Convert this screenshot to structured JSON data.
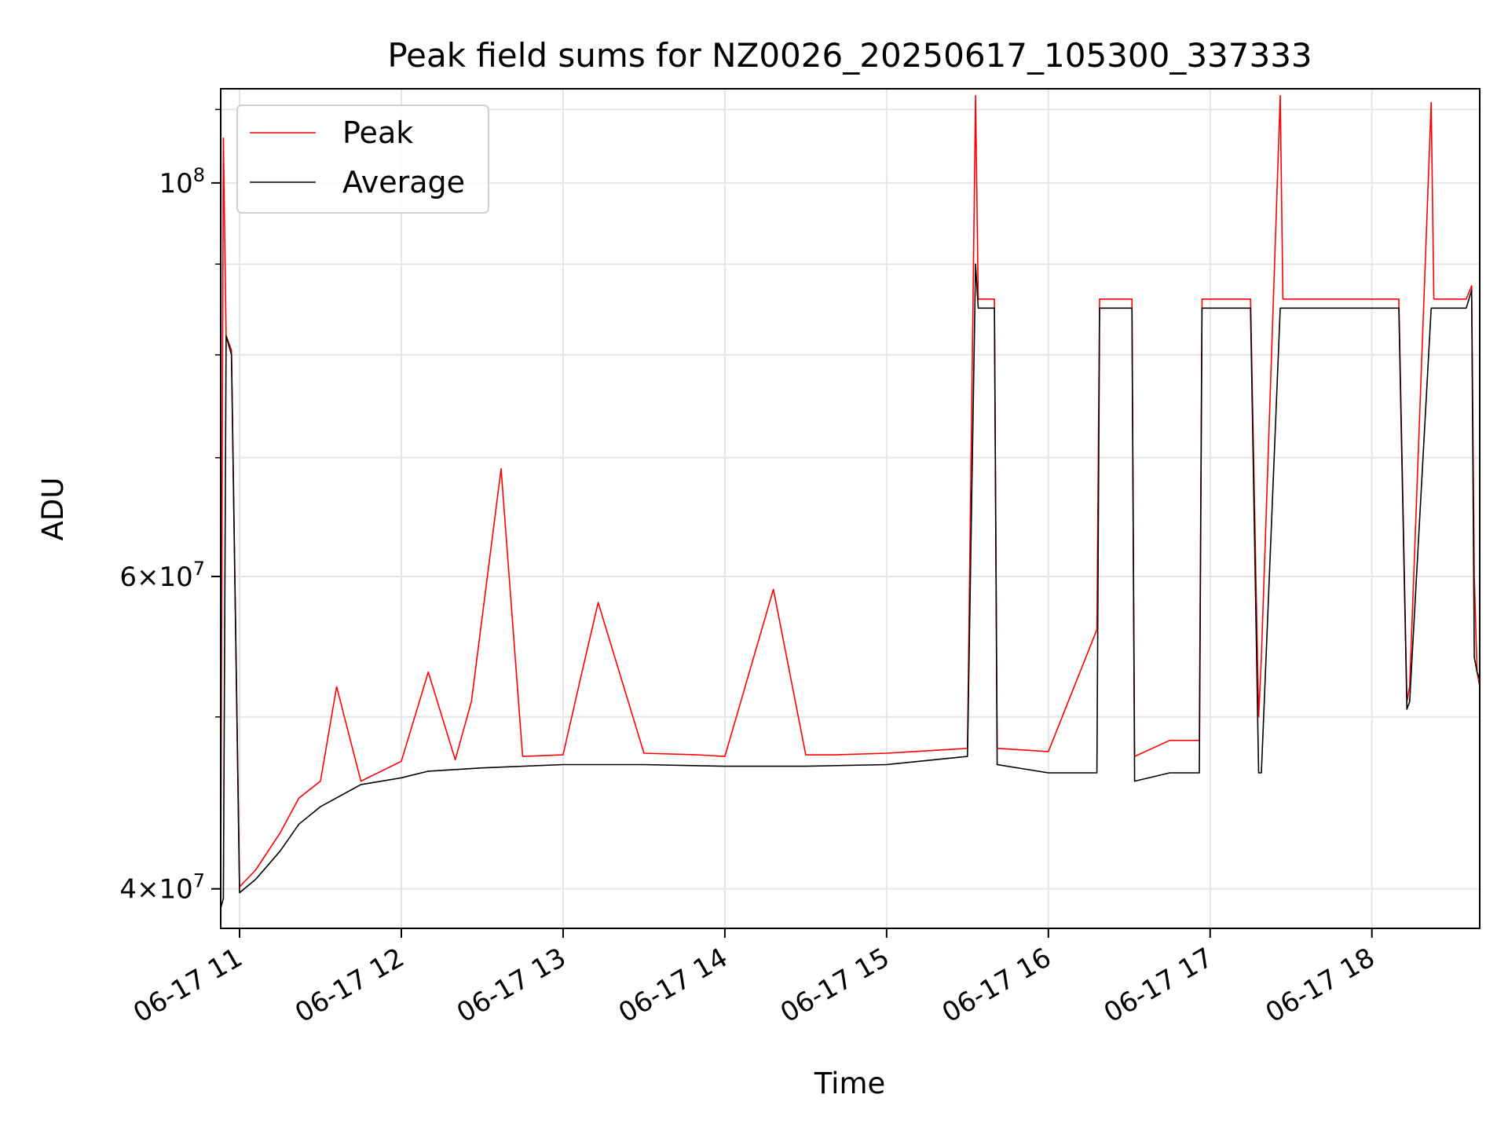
{
  "chart_data": {
    "type": "line",
    "title": "Peak field sums for NZ0026_20250617_105300_337333",
    "xlabel": "Time",
    "ylabel": "ADU",
    "y_scale": "log",
    "ylim": [
      38000000,
      113000000
    ],
    "xlim": [
      "2025-06-17 10:53",
      "2025-06-17 18:40"
    ],
    "grid": true,
    "legend_position": "upper-left",
    "x_ticks": [
      {
        "value": "2025-06-17 11:00",
        "label": "06-17 11"
      },
      {
        "value": "2025-06-17 12:00",
        "label": "06-17 12"
      },
      {
        "value": "2025-06-17 13:00",
        "label": "06-17 13"
      },
      {
        "value": "2025-06-17 14:00",
        "label": "06-17 14"
      },
      {
        "value": "2025-06-17 15:00",
        "label": "06-17 15"
      },
      {
        "value": "2025-06-17 16:00",
        "label": "06-17 16"
      },
      {
        "value": "2025-06-17 17:00",
        "label": "06-17 17"
      },
      {
        "value": "2025-06-17 18:00",
        "label": "06-17 18"
      }
    ],
    "y_ticks": [
      {
        "value": 40000000,
        "base": "4×10",
        "exp": "7"
      },
      {
        "value": 60000000,
        "base": "6×10",
        "exp": "7"
      },
      {
        "value": 100000000,
        "base": "10",
        "exp": "8"
      }
    ],
    "series": [
      {
        "name": "Peak",
        "color": "#ff0000",
        "x": [
          "2025-06-17 10:53",
          "2025-06-17 10:54",
          "2025-06-17 10:55",
          "2025-06-17 10:57",
          "2025-06-17 11:00",
          "2025-06-17 11:06",
          "2025-06-17 11:15",
          "2025-06-17 11:22",
          "2025-06-17 11:30",
          "2025-06-17 11:36",
          "2025-06-17 11:45",
          "2025-06-17 12:00",
          "2025-06-17 12:10",
          "2025-06-17 12:20",
          "2025-06-17 12:26",
          "2025-06-17 12:37",
          "2025-06-17 12:45",
          "2025-06-17 13:00",
          "2025-06-17 13:07",
          "2025-06-17 13:13",
          "2025-06-17 13:30",
          "2025-06-17 13:50",
          "2025-06-17 14:00",
          "2025-06-17 14:18",
          "2025-06-17 14:30",
          "2025-06-17 14:41",
          "2025-06-17 15:00",
          "2025-06-17 15:30",
          "2025-06-17 15:33",
          "2025-06-17 15:34",
          "2025-06-17 15:40",
          "2025-06-17 15:41",
          "2025-06-17 16:00",
          "2025-06-17 16:18",
          "2025-06-17 16:19",
          "2025-06-17 16:31",
          "2025-06-17 16:32",
          "2025-06-17 16:45",
          "2025-06-17 16:56",
          "2025-06-17 16:57",
          "2025-06-17 17:15",
          "2025-06-17 17:18",
          "2025-06-17 17:19",
          "2025-06-17 17:26",
          "2025-06-17 17:27",
          "2025-06-17 17:50",
          "2025-06-17 17:57",
          "2025-06-17 18:10",
          "2025-06-17 18:13",
          "2025-06-17 18:14",
          "2025-06-17 18:22",
          "2025-06-17 18:23",
          "2025-06-17 18:35",
          "2025-06-17 18:37",
          "2025-06-17 18:38",
          "2025-06-17 18:39",
          "2025-06-17 18:40"
        ],
        "y": [
          40000000,
          106000000,
          82000000,
          80500000,
          40100000,
          41000000,
          43000000,
          45000000,
          46000000,
          52000000,
          46000000,
          47200000,
          53000000,
          47300000,
          51000000,
          69000000,
          47500000,
          47600000,
          53000000,
          58000000,
          47700000,
          47600000,
          47500000,
          59000000,
          47600000,
          47600000,
          47700000,
          48000000,
          112000000,
          86000000,
          86000000,
          48000000,
          47800000,
          56000000,
          86000000,
          86000000,
          47500000,
          48500000,
          48500000,
          86000000,
          86000000,
          50000000,
          54000000,
          112000000,
          86000000,
          86000000,
          86000000,
          86000000,
          51000000,
          52000000,
          111000000,
          86000000,
          86000000,
          87500000,
          60000000,
          53000000,
          52000000
        ]
      },
      {
        "name": "Average",
        "color": "#000000",
        "x": [
          "2025-06-17 10:53",
          "2025-06-17 10:54",
          "2025-06-17 10:55",
          "2025-06-17 10:57",
          "2025-06-17 11:00",
          "2025-06-17 11:06",
          "2025-06-17 11:15",
          "2025-06-17 11:22",
          "2025-06-17 11:30",
          "2025-06-17 11:45",
          "2025-06-17 12:00",
          "2025-06-17 12:10",
          "2025-06-17 12:30",
          "2025-06-17 13:00",
          "2025-06-17 13:30",
          "2025-06-17 14:00",
          "2025-06-17 14:30",
          "2025-06-17 15:00",
          "2025-06-17 15:30",
          "2025-06-17 15:33",
          "2025-06-17 15:34",
          "2025-06-17 15:40",
          "2025-06-17 15:41",
          "2025-06-17 16:00",
          "2025-06-17 16:18",
          "2025-06-17 16:19",
          "2025-06-17 16:31",
          "2025-06-17 16:32",
          "2025-06-17 16:45",
          "2025-06-17 16:56",
          "2025-06-17 16:57",
          "2025-06-17 17:15",
          "2025-06-17 17:18",
          "2025-06-17 17:19",
          "2025-06-17 17:26",
          "2025-06-17 17:27",
          "2025-06-17 17:57",
          "2025-06-17 18:10",
          "2025-06-17 18:13",
          "2025-06-17 18:14",
          "2025-06-17 18:22",
          "2025-06-17 18:23",
          "2025-06-17 18:35",
          "2025-06-17 18:37",
          "2025-06-17 18:38",
          "2025-06-17 18:39",
          "2025-06-17 18:40"
        ],
        "y": [
          39000000,
          39500000,
          82000000,
          80000000,
          39800000,
          40500000,
          42000000,
          43500000,
          44500000,
          45800000,
          46200000,
          46600000,
          46800000,
          47000000,
          47000000,
          46900000,
          46900000,
          47000000,
          47500000,
          90000000,
          85000000,
          85000000,
          47000000,
          46500000,
          46500000,
          85000000,
          85000000,
          46000000,
          46500000,
          46500000,
          85000000,
          85000000,
          46500000,
          46500000,
          85000000,
          85000000,
          85000000,
          85000000,
          50500000,
          51000000,
          85000000,
          85000000,
          85000000,
          87000000,
          54000000,
          53000000,
          52500000
        ]
      }
    ]
  }
}
